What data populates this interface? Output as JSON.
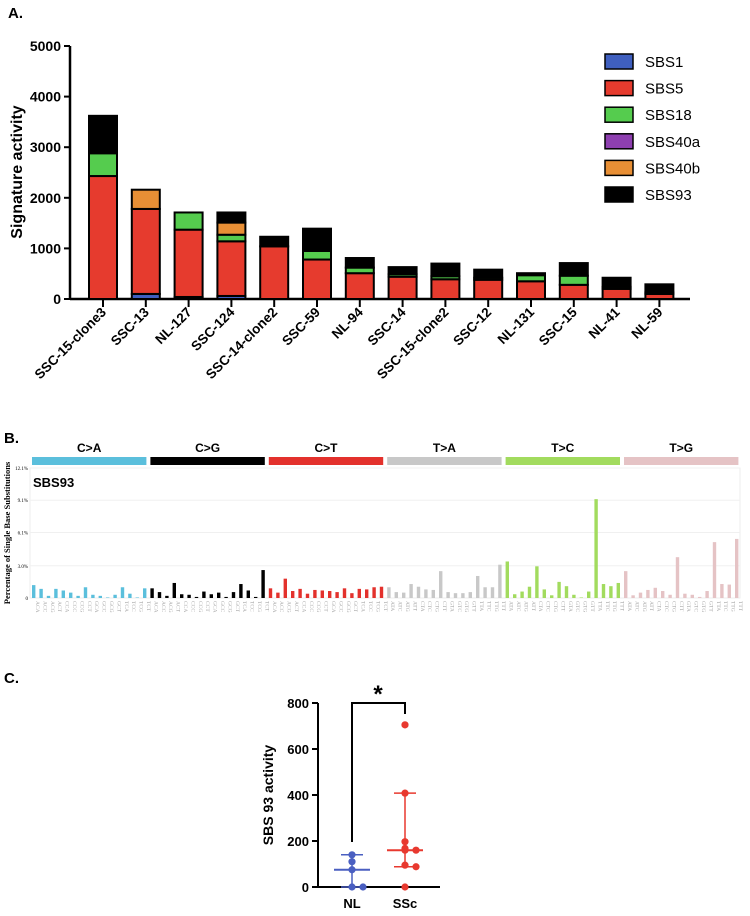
{
  "panel_labels": {
    "a": "A.",
    "b": "B.",
    "c": "C."
  },
  "chart_data": [
    {
      "type": "bar",
      "stacked": true,
      "ylabel": "Signature activity",
      "ylim": [
        0,
        5000
      ],
      "yticks": [
        0,
        1000,
        2000,
        3000,
        4000,
        5000
      ],
      "legend_placement": "top-right",
      "categories": [
        "SSC-15-clone3",
        "SSC-13",
        "NL-127",
        "SSC-124",
        "SSC-14-clone2",
        "SSC-59",
        "NL-94",
        "SSC-14",
        "SSC-15-clone2",
        "SSC-12",
        "NL-131",
        "SSC-15",
        "NL-41",
        "NL-59"
      ],
      "series": [
        {
          "name": "SBS1",
          "color": "#3f5fbf",
          "values": [
            0,
            100,
            40,
            60,
            0,
            0,
            0,
            0,
            0,
            0,
            0,
            0,
            0,
            0
          ]
        },
        {
          "name": "SBS5",
          "color": "#e63b2e",
          "values": [
            2430,
            1680,
            1330,
            1080,
            1040,
            780,
            510,
            440,
            390,
            380,
            350,
            280,
            200,
            100
          ]
        },
        {
          "name": "SBS18",
          "color": "#55cc4e",
          "values": [
            450,
            0,
            340,
            130,
            0,
            170,
            110,
            50,
            60,
            40,
            120,
            180,
            40,
            30
          ]
        },
        {
          "name": "SBS40a",
          "color": "#8e3fb0",
          "values": [
            0,
            0,
            0,
            0,
            0,
            0,
            0,
            0,
            0,
            0,
            0,
            0,
            0,
            0
          ]
        },
        {
          "name": "SBS40b",
          "color": "#e88f35",
          "values": [
            0,
            380,
            0,
            240,
            0,
            0,
            0,
            0,
            0,
            0,
            0,
            0,
            0,
            0
          ]
        },
        {
          "name": "SBS93",
          "color": "#000000",
          "values": [
            740,
            0,
            0,
            200,
            190,
            440,
            190,
            140,
            250,
            160,
            40,
            250,
            180,
            160
          ]
        }
      ]
    },
    {
      "type": "bar",
      "title": "SBS93",
      "ylabel": "Percentage of Single Base Substitutions",
      "ylim": [
        0,
        12.1
      ],
      "yticks": [
        "0",
        "3.0%",
        "6.1%",
        "9.1%",
        "12.1%"
      ],
      "ytick_values": [
        0,
        3.0,
        6.1,
        9.1,
        12.1
      ],
      "groups": [
        {
          "name": "C>A",
          "color": "#5bbfdc",
          "contexts": [
            "ACA",
            "ACC",
            "ACG",
            "ACT",
            "CCA",
            "CCC",
            "CCG",
            "CCT",
            "GCA",
            "GCC",
            "GCG",
            "GCT",
            "TCA",
            "TCC",
            "TCG",
            "TCT"
          ],
          "values": [
            1.2,
            0.85,
            0.2,
            0.85,
            0.7,
            0.5,
            0.2,
            1.0,
            0.3,
            0.2,
            0.05,
            0.3,
            1.0,
            0.4,
            0.05,
            0.9
          ]
        },
        {
          "name": "C>G",
          "color": "#000000",
          "contexts": [
            "ACA",
            "ACC",
            "ACG",
            "ACT",
            "CCA",
            "CCC",
            "CCG",
            "CCT",
            "GCA",
            "GCC",
            "GCG",
            "GCT",
            "TCA",
            "TCC",
            "TCG",
            "TCT"
          ],
          "values": [
            0.9,
            0.55,
            0.2,
            1.4,
            0.35,
            0.3,
            0.1,
            0.6,
            0.35,
            0.5,
            0.1,
            0.55,
            1.3,
            0.7,
            0.1,
            2.6
          ]
        },
        {
          "name": "C>T",
          "color": "#e3312c",
          "contexts": [
            "ACA",
            "ACC",
            "ACG",
            "ACT",
            "CCA",
            "CCC",
            "CCG",
            "CCT",
            "GCA",
            "GCC",
            "GCG",
            "GCT",
            "TCA",
            "TCC",
            "TCG",
            "TCT"
          ],
          "values": [
            0.9,
            0.5,
            1.8,
            0.65,
            0.85,
            0.4,
            0.75,
            0.7,
            0.65,
            0.55,
            0.9,
            0.45,
            0.85,
            0.8,
            1.0,
            1.05
          ]
        },
        {
          "name": "T>A",
          "color": "#c8c8c8",
          "contexts": [
            "ATA",
            "ATC",
            "ATG",
            "ATT",
            "CTA",
            "CTC",
            "CTG",
            "CTT",
            "GTA",
            "GTC",
            "GTG",
            "GTT",
            "TTA",
            "TTC",
            "TTG",
            "TTT"
          ],
          "values": [
            1.0,
            0.55,
            0.5,
            1.3,
            1.05,
            0.8,
            0.75,
            2.5,
            0.55,
            0.45,
            0.45,
            0.55,
            2.05,
            1.0,
            1.0,
            3.1
          ]
        },
        {
          "name": "T>C",
          "color": "#a2db5e",
          "contexts": [
            "ATA",
            "ATC",
            "ATG",
            "ATT",
            "CTA",
            "CTC",
            "CTG",
            "CTT",
            "GTA",
            "GTC",
            "GTG",
            "GTT",
            "TTA",
            "TTC",
            "TTG",
            "TTT"
          ],
          "values": [
            3.4,
            0.35,
            0.6,
            1.05,
            2.95,
            0.8,
            0.25,
            1.5,
            1.1,
            0.3,
            0.05,
            0.6,
            9.2,
            1.3,
            1.1,
            1.4
          ]
        },
        {
          "name": "T>G",
          "color": "#e5c3c5",
          "contexts": [
            "ATA",
            "ATC",
            "ATG",
            "ATT",
            "CTA",
            "CTC",
            "CTG",
            "CTT",
            "GTA",
            "GTC",
            "GTG",
            "GTT",
            "TTA",
            "TTC",
            "TTG",
            "TTT"
          ],
          "values": [
            2.5,
            0.25,
            0.5,
            0.75,
            0.95,
            0.65,
            0.3,
            3.8,
            0.4,
            0.3,
            0.1,
            0.65,
            5.2,
            1.3,
            1.25,
            5.5
          ]
        }
      ]
    },
    {
      "type": "scatter",
      "ylabel": "SBS 93 activity",
      "ylim": [
        0,
        800
      ],
      "yticks": [
        0,
        200,
        400,
        600,
        800
      ],
      "significance": "*",
      "groups": [
        {
          "name": "NL",
          "color": "#4a5fc1",
          "points": [
            140,
            110,
            75,
            0,
            0
          ],
          "median": 75,
          "error_low": 0,
          "error_high": 140
        },
        {
          "name": "SSc",
          "color": "#e8392f",
          "points": [
            705,
            408,
            197,
            168,
            160,
            160,
            95,
            88,
            0
          ],
          "median": 160,
          "error_low": 88,
          "error_high": 408
        }
      ]
    }
  ]
}
